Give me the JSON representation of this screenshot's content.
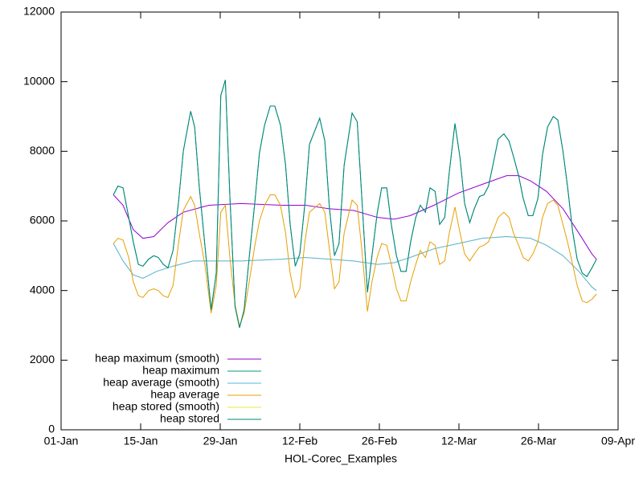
{
  "chart_data": {
    "type": "line",
    "xlabel": "HOL-Corec_Examples",
    "xlim": [
      0,
      98
    ],
    "xticks": [
      {
        "value": 0,
        "label": "01-Jan"
      },
      {
        "value": 14,
        "label": "15-Jan"
      },
      {
        "value": 28,
        "label": "29-Jan"
      },
      {
        "value": 42,
        "label": "12-Feb"
      },
      {
        "value": 56,
        "label": "26-Feb"
      },
      {
        "value": 70,
        "label": "12-Mar"
      },
      {
        "value": 84,
        "label": "26-Mar"
      },
      {
        "value": 98,
        "label": "09-Apr"
      }
    ],
    "ylim": [
      0,
      12000
    ],
    "yticks": [
      0,
      2000,
      4000,
      6000,
      8000,
      10000,
      12000
    ],
    "grid": false,
    "legend": "bottom-left",
    "series": [
      {
        "name": "heap maximum (smooth)",
        "color": "#9400d3",
        "x": [
          9.2,
          10.9,
          12.7,
          14.4,
          16.3,
          18.8,
          21.5,
          26.0,
          31.7,
          38.8,
          43.0,
          47.2,
          51.5,
          55.7,
          58.6,
          61.4,
          65.6,
          69.9,
          74.1,
          78.4,
          80.5,
          82.6,
          85.4,
          88.3,
          91.1,
          93.4,
          94.2
        ],
        "values": [
          6750,
          6450,
          5750,
          5500,
          5550,
          5950,
          6250,
          6450,
          6500,
          6450,
          6450,
          6350,
          6300,
          6100,
          6050,
          6150,
          6450,
          6800,
          7050,
          7300,
          7300,
          7150,
          6850,
          6350,
          5650,
          5050,
          4900
        ]
      },
      {
        "name": "heap maximum",
        "color": "#009e73",
        "x": [
          9.2,
          10.0,
          10.9,
          11.9,
          12.7,
          13.6,
          14.4,
          15.4,
          16.3,
          17.1,
          18.0,
          18.8,
          19.7,
          20.7,
          21.5,
          22.8,
          23.5,
          24.3,
          25.3,
          26.4,
          27.3,
          28.1,
          28.9,
          29.7,
          30.6,
          31.4,
          32.2,
          33.1,
          34.1,
          34.9,
          35.8,
          36.8,
          37.6,
          38.6,
          39.5,
          40.3,
          41.2,
          42.0,
          42.9,
          43.7,
          45.5,
          46.4,
          47.2,
          48.1,
          48.9,
          49.8,
          51.2,
          52.1,
          52.9,
          53.9,
          54.7,
          55.6,
          56.4,
          57.3,
          58.1,
          59.0,
          59.8,
          60.7,
          61.5,
          62.4,
          63.2,
          64.1,
          64.9,
          65.8,
          66.6,
          67.5,
          68.3,
          69.3,
          70.2,
          71.0,
          71.9,
          72.7,
          73.6,
          74.4,
          75.2,
          76.1,
          76.9,
          77.9,
          78.8,
          79.6,
          80.5,
          81.3,
          82.2,
          83.0,
          83.9,
          84.7,
          85.6,
          86.6,
          87.4,
          88.3,
          89.1,
          90.0,
          90.8,
          91.7,
          92.5,
          93.4,
          94.2
        ],
        "values": [
          6750,
          7000,
          6950,
          6100,
          5400,
          4750,
          4700,
          4900,
          5000,
          4950,
          4750,
          4650,
          5150,
          6600,
          8000,
          9150,
          8700,
          7000,
          5300,
          3450,
          4500,
          9600,
          10050,
          6700,
          3550,
          2930,
          3450,
          4950,
          6550,
          7950,
          8750,
          9300,
          9300,
          8750,
          7600,
          5900,
          4700,
          5050,
          6500,
          8200,
          8950,
          8300,
          6400,
          5000,
          5350,
          7600,
          9100,
          8850,
          6700,
          3950,
          5000,
          6200,
          6950,
          6950,
          5900,
          5000,
          4550,
          4550,
          5400,
          6100,
          6450,
          6250,
          6950,
          6850,
          5900,
          6100,
          7400,
          8800,
          7800,
          6500,
          5950,
          6350,
          6700,
          6750,
          7000,
          7700,
          8350,
          8500,
          8300,
          7850,
          7300,
          6650,
          6150,
          6150,
          6650,
          7900,
          8700,
          9000,
          8900,
          8000,
          7000,
          5700,
          4900,
          4500,
          4400,
          4650,
          4900
        ]
      },
      {
        "name": "heap average (smooth)",
        "color": "#56b4e9",
        "x": [
          9.2,
          10.9,
          12.7,
          14.4,
          16.8,
          19.7,
          23.2,
          27.4,
          31.7,
          38.8,
          43.0,
          47.2,
          51.5,
          55.7,
          58.6,
          61.4,
          65.6,
          69.9,
          74.1,
          78.4,
          82.6,
          85.4,
          88.3,
          91.1,
          93.4,
          94.2
        ],
        "values": [
          5350,
          4850,
          4450,
          4350,
          4550,
          4700,
          4850,
          4850,
          4850,
          4900,
          4950,
          4900,
          4850,
          4750,
          4800,
          4950,
          5200,
          5350,
          5500,
          5550,
          5500,
          5300,
          5000,
          4550,
          4100,
          4000
        ]
      },
      {
        "name": "heap average",
        "color": "#e69f00",
        "x": [
          9.2,
          10.0,
          10.9,
          11.9,
          12.7,
          13.6,
          14.4,
          15.4,
          16.3,
          17.1,
          18.0,
          18.8,
          19.7,
          20.7,
          21.5,
          22.8,
          23.5,
          24.3,
          25.3,
          26.4,
          27.3,
          28.1,
          28.9,
          29.7,
          30.6,
          31.4,
          32.2,
          33.1,
          34.1,
          34.9,
          35.8,
          36.8,
          37.6,
          38.6,
          39.5,
          40.3,
          41.2,
          42.0,
          42.9,
          43.7,
          45.5,
          46.4,
          47.2,
          48.1,
          48.9,
          49.8,
          51.2,
          52.1,
          52.9,
          53.9,
          54.7,
          55.6,
          56.4,
          57.3,
          58.1,
          59.0,
          59.8,
          60.7,
          61.5,
          62.4,
          63.2,
          64.1,
          64.9,
          65.8,
          66.6,
          67.5,
          68.3,
          69.3,
          70.2,
          71.0,
          71.9,
          72.7,
          73.6,
          74.4,
          75.2,
          76.1,
          76.9,
          77.9,
          78.8,
          79.6,
          80.5,
          81.3,
          82.2,
          83.0,
          83.9,
          84.7,
          85.6,
          86.6,
          87.4,
          88.3,
          89.1,
          90.0,
          90.8,
          91.7,
          92.5,
          93.4,
          94.2
        ],
        "values": [
          5350,
          5500,
          5450,
          4950,
          4250,
          3850,
          3800,
          4000,
          4050,
          4000,
          3850,
          3800,
          4150,
          5400,
          6300,
          6700,
          6450,
          5650,
          4750,
          3350,
          4150,
          6250,
          6450,
          4950,
          3600,
          2980,
          3350,
          4250,
          5300,
          6000,
          6450,
          6750,
          6750,
          6450,
          5650,
          4500,
          3800,
          4050,
          5400,
          6250,
          6500,
          6250,
          5200,
          4050,
          4250,
          5650,
          6600,
          6450,
          5200,
          3400,
          4250,
          4950,
          5350,
          5300,
          4750,
          4050,
          3700,
          3700,
          4250,
          4750,
          5150,
          4950,
          5400,
          5300,
          4750,
          4850,
          5650,
          6400,
          5650,
          5050,
          4850,
          5050,
          5250,
          5300,
          5400,
          5750,
          6100,
          6250,
          6100,
          5650,
          5300,
          4950,
          4850,
          5050,
          5400,
          6100,
          6500,
          6600,
          6450,
          5900,
          5400,
          4750,
          4150,
          3700,
          3650,
          3750,
          3900
        ]
      },
      {
        "name": "heap stored (smooth)",
        "color": "#f0e442",
        "x": [
          9.2,
          10.9,
          12.7,
          14.4,
          16.8,
          19.7,
          23.2,
          27.4,
          31.7,
          38.8,
          43.0,
          47.2,
          51.5,
          55.7,
          58.6,
          61.4,
          65.6,
          69.9,
          74.1,
          78.4,
          82.6,
          85.4,
          88.3,
          91.1,
          93.4,
          94.2
        ],
        "values": [
          5350,
          4850,
          4450,
          4350,
          4550,
          4700,
          4850,
          4850,
          4850,
          4900,
          4950,
          4900,
          4850,
          4750,
          4800,
          4950,
          5200,
          5350,
          5500,
          5550,
          5500,
          5300,
          5000,
          4550,
          4100,
          4000
        ]
      },
      {
        "name": "heap stored",
        "color": "#00877a",
        "x": [
          9.2,
          10.0,
          10.9,
          11.9,
          12.7,
          13.6,
          14.4,
          15.4,
          16.3,
          17.1,
          18.0,
          18.8,
          19.7,
          20.7,
          21.5,
          22.8,
          23.5,
          24.3,
          25.3,
          26.4,
          27.3,
          28.1,
          28.9,
          29.7,
          30.6,
          31.4,
          32.2,
          33.1,
          34.1,
          34.9,
          35.8,
          36.8,
          37.6,
          38.6,
          39.5,
          40.3,
          41.2,
          42.0,
          42.9,
          43.7,
          45.5,
          46.4,
          47.2,
          48.1,
          48.9,
          49.8,
          51.2,
          52.1,
          52.9,
          53.9,
          54.7,
          55.6,
          56.4,
          57.3,
          58.1,
          59.0,
          59.8,
          60.7,
          61.5,
          62.4,
          63.2,
          64.1,
          64.9,
          65.8,
          66.6,
          67.5,
          68.3,
          69.3,
          70.2,
          71.0,
          71.9,
          72.7,
          73.6,
          74.4,
          75.2,
          76.1,
          76.9,
          77.9,
          78.8,
          79.6,
          80.5,
          81.3,
          82.2,
          83.0,
          83.9,
          84.7,
          85.6,
          86.6,
          87.4,
          88.3,
          89.1,
          90.0,
          90.8,
          91.7,
          92.5,
          93.4,
          94.2
        ],
        "values": [
          6750,
          7000,
          6950,
          6100,
          5400,
          4750,
          4700,
          4900,
          5000,
          4950,
          4750,
          4650,
          5150,
          6600,
          8000,
          9150,
          8700,
          7000,
          5300,
          3450,
          4500,
          9600,
          10050,
          6700,
          3550,
          2930,
          3450,
          4950,
          6550,
          7950,
          8750,
          9300,
          9300,
          8750,
          7600,
          5900,
          4700,
          5050,
          6500,
          8200,
          8950,
          8300,
          6400,
          5000,
          5350,
          7600,
          9100,
          8850,
          6700,
          3950,
          5000,
          6200,
          6950,
          6950,
          5900,
          5000,
          4550,
          4550,
          5400,
          6100,
          6450,
          6250,
          6950,
          6850,
          5900,
          6100,
          7400,
          8800,
          7800,
          6500,
          5950,
          6350,
          6700,
          6750,
          7000,
          7700,
          8350,
          8500,
          8300,
          7850,
          7300,
          6650,
          6150,
          6150,
          6650,
          7900,
          8700,
          9000,
          8900,
          8000,
          7000,
          5700,
          4900,
          4500,
          4400,
          4650,
          4900
        ]
      }
    ]
  }
}
